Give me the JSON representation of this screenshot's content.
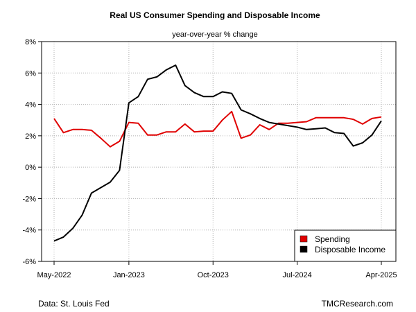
{
  "chart_data": {
    "type": "line",
    "title": "Real US Consumer Spending and Disposable Income",
    "subtitle": "year-over-year % change",
    "x": [
      "2022-05",
      "2022-06",
      "2022-07",
      "2022-08",
      "2022-09",
      "2022-10",
      "2022-11",
      "2022-12",
      "2023-01",
      "2023-02",
      "2023-03",
      "2023-04",
      "2023-05",
      "2023-06",
      "2023-07",
      "2023-08",
      "2023-09",
      "2023-10",
      "2023-11",
      "2023-12",
      "2024-01",
      "2024-02",
      "2024-03",
      "2024-04",
      "2024-05",
      "2024-06",
      "2024-07",
      "2024-08",
      "2024-09",
      "2024-10",
      "2024-11",
      "2024-12",
      "2025-01",
      "2025-02",
      "2025-03",
      "2025-04"
    ],
    "x_ticks": [
      "May-2022",
      "Jan-2023",
      "Oct-2023",
      "Jul-2024",
      "Apr-2025"
    ],
    "x_tick_positions": [
      "2022-05",
      "2023-01",
      "2023-10",
      "2024-07",
      "2025-04"
    ],
    "y_ticks": [
      "8%",
      "6%",
      "4%",
      "2%",
      "0%",
      "-2%",
      "-4%",
      "-6%"
    ],
    "ylim": [
      -6,
      8
    ],
    "y_unit": "%",
    "grid": true,
    "legend_position": "bottom-right",
    "series": [
      {
        "name": "Spending",
        "color": "#e00000",
        "values": [
          3.1,
          2.2,
          2.4,
          2.4,
          2.35,
          1.85,
          1.3,
          1.65,
          2.85,
          2.8,
          2.05,
          2.05,
          2.25,
          2.25,
          2.75,
          2.25,
          2.3,
          2.3,
          3.0,
          3.55,
          1.85,
          2.05,
          2.7,
          2.4,
          2.8,
          2.8,
          2.85,
          2.9,
          3.15,
          3.15,
          3.15,
          3.15,
          3.05,
          2.75,
          3.1,
          3.2
        ]
      },
      {
        "name": "Disposable Income",
        "color": "#000000",
        "values": [
          -4.7,
          -4.45,
          -3.9,
          -3.05,
          -1.65,
          -1.3,
          -0.95,
          -0.2,
          4.1,
          4.5,
          5.6,
          5.75,
          6.2,
          6.5,
          5.2,
          4.75,
          4.5,
          4.5,
          4.8,
          4.7,
          3.65,
          3.4,
          3.1,
          2.85,
          2.75,
          2.65,
          2.55,
          2.4,
          2.45,
          2.5,
          2.2,
          2.15,
          1.35,
          1.55,
          2.05,
          2.95
        ]
      }
    ]
  },
  "footer": {
    "source": "Data: St. Louis Fed",
    "credit": "TMCResearch.com"
  }
}
